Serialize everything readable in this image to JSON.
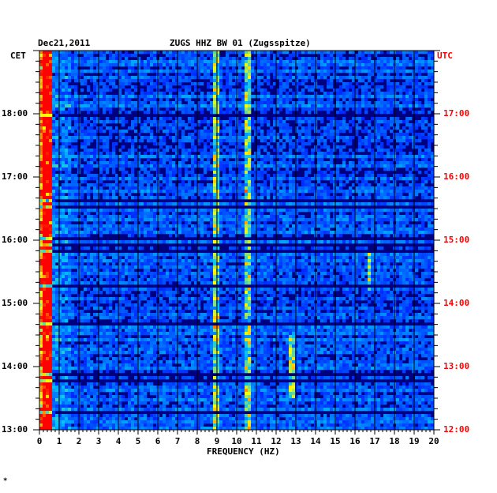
{
  "header": {
    "date": "Dec21,2011",
    "station": "ZUGS HHZ BW 01 (Zugsspitze)"
  },
  "chart_data": {
    "type": "heatmap",
    "xlabel": "FREQUENCY (HZ)",
    "xlim": [
      0,
      20
    ],
    "x_ticks": [
      "0",
      "1",
      "2",
      "3",
      "4",
      "5",
      "6",
      "7",
      "8",
      "9",
      "10",
      "11",
      "12",
      "13",
      "14",
      "15",
      "16",
      "17",
      "18",
      "19",
      "20"
    ],
    "left_axis": {
      "zone": "CET",
      "ticks": [
        "18:00",
        "17:00",
        "16:00",
        "15:00",
        "14:00",
        "13:00"
      ],
      "hours": [
        18,
        17,
        16,
        15,
        14,
        13
      ],
      "range_hours": [
        13,
        19
      ]
    },
    "right_axis": {
      "zone": "UTC",
      "ticks": [
        "17:00",
        "16:00",
        "15:00",
        "14:00",
        "13:00",
        "12:00"
      ],
      "color": "#ff0000"
    },
    "grid": true,
    "colormap": [
      "#00007f",
      "#0000ff",
      "#00c0ff",
      "#ffff00",
      "#ff0000"
    ],
    "background_level": "low (dark blue)",
    "features": [
      {
        "desc": "strong continuous energy",
        "freq_hz": [
          0.1,
          0.6
        ]
      },
      {
        "desc": "narrow band",
        "freq_hz": 9.0
      },
      {
        "desc": "bursts",
        "freq_hz": 10.6
      },
      {
        "desc": "hot burst",
        "freq_hz": 12.8,
        "time_cet": [
          13.5,
          14.5
        ]
      },
      {
        "desc": "bursts",
        "freq_hz": 16.7,
        "time_cet": [
          15.2,
          15.8
        ]
      }
    ]
  },
  "footer": {
    "mark": "*"
  }
}
